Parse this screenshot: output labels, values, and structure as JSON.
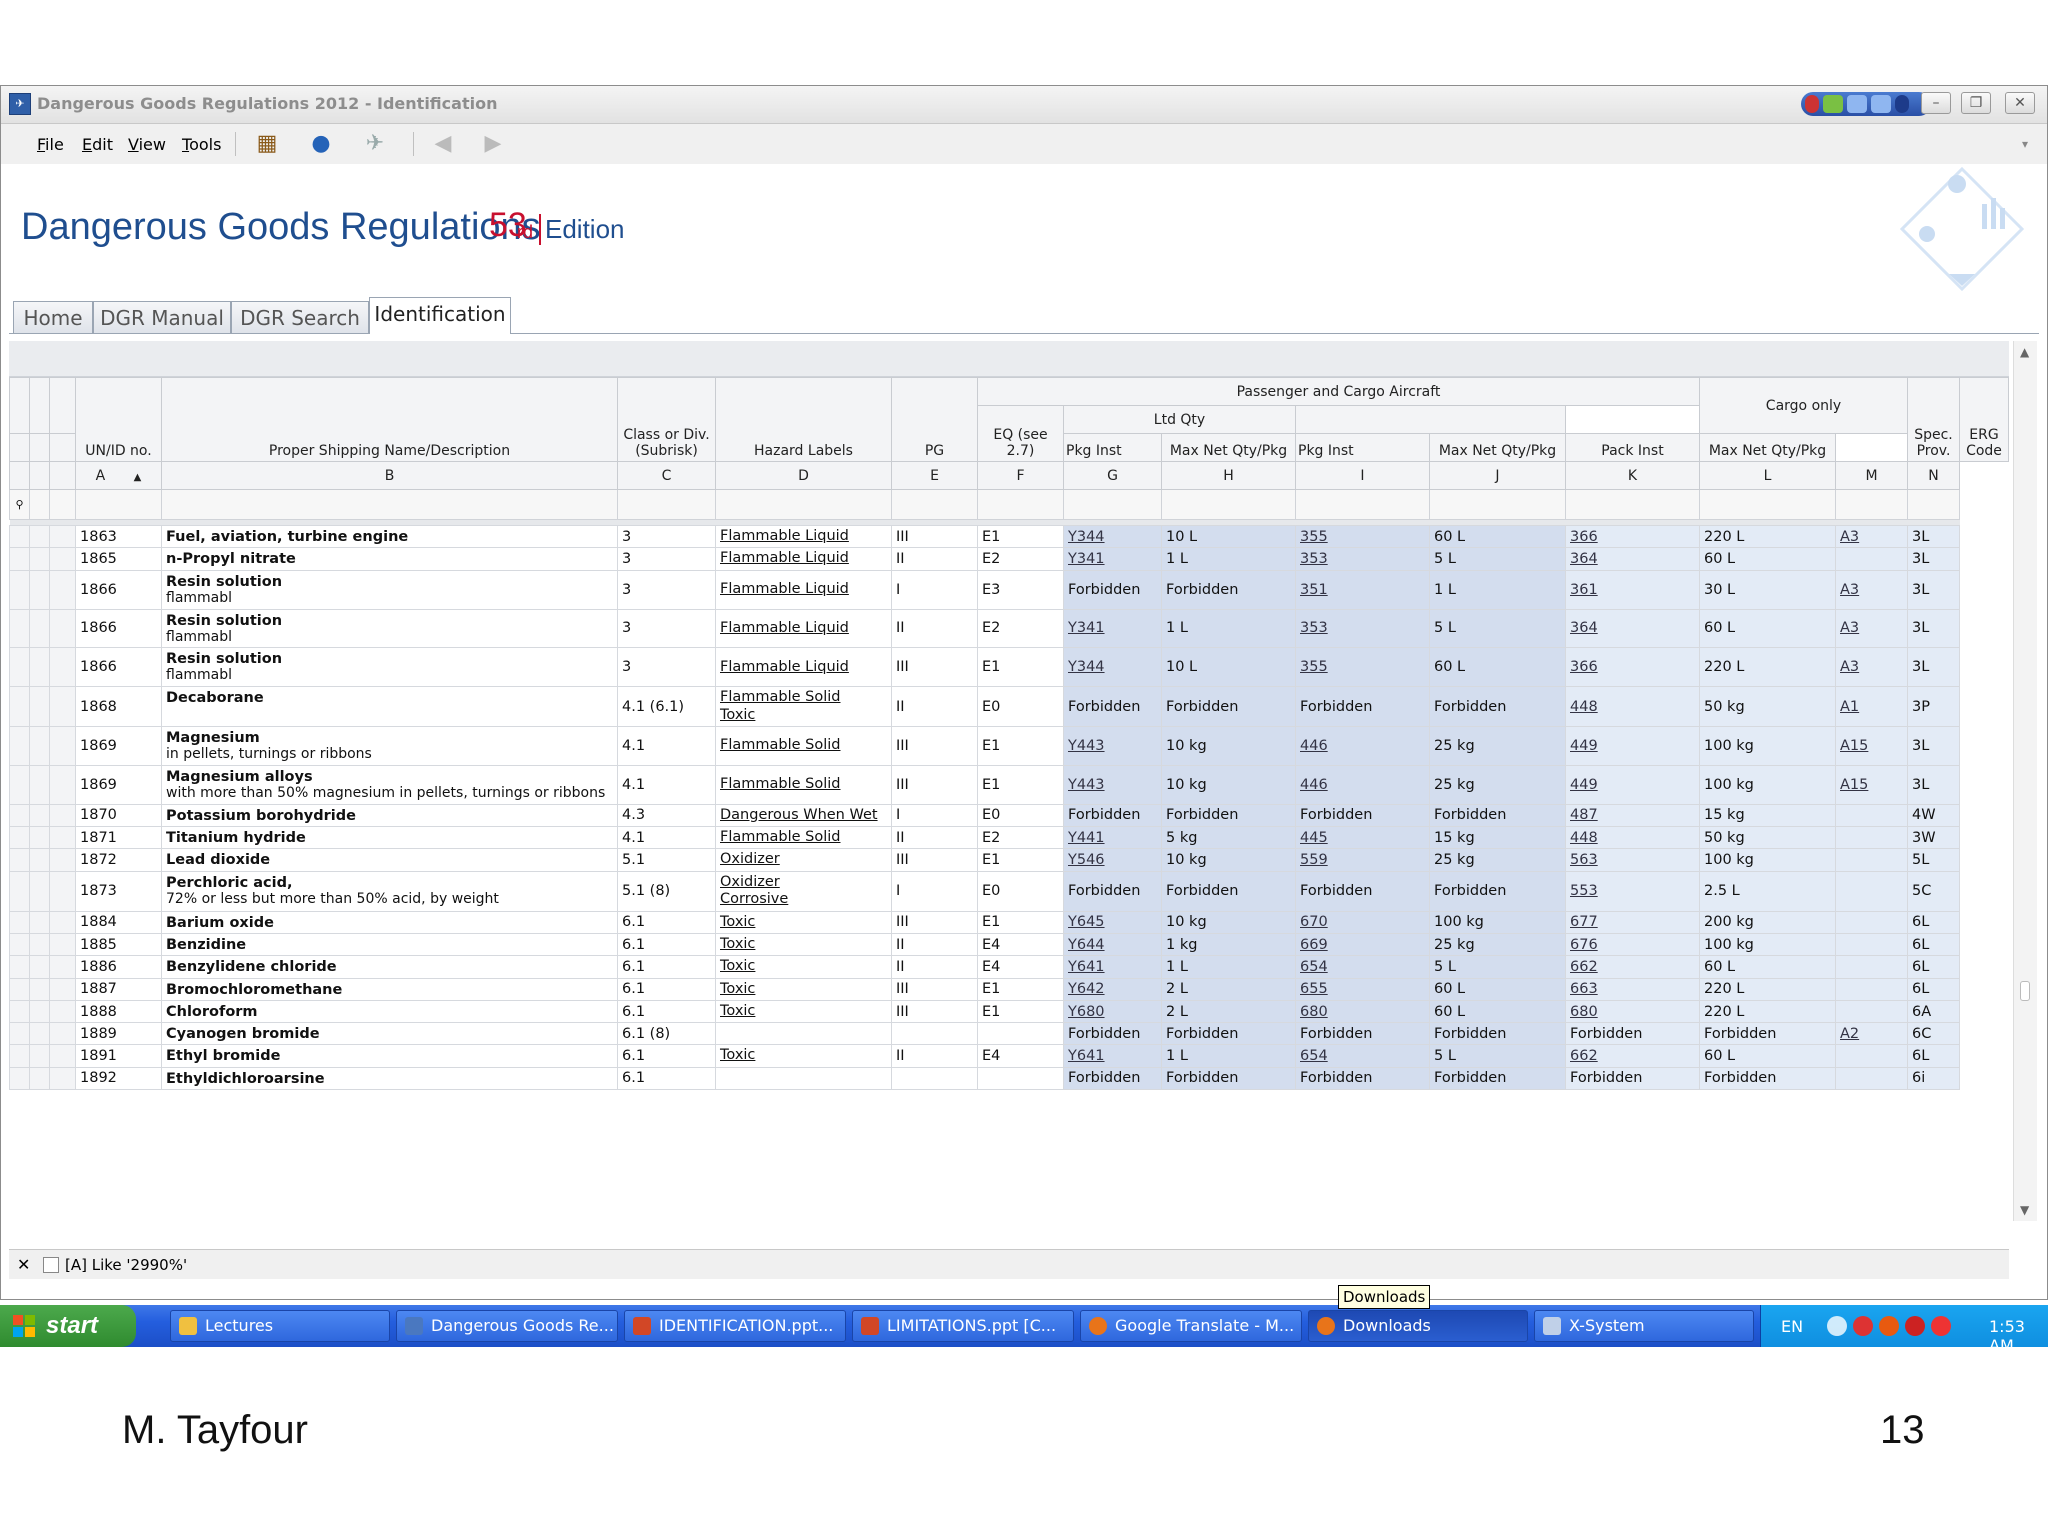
{
  "window": {
    "title": "Dangerous Goods Regulations 2012 - Identification"
  },
  "menu": [
    "File",
    "Edit",
    "View",
    "Tools"
  ],
  "banner": {
    "title": "Dangerous Goods Regulations",
    "edition_number": "53",
    "edition_suffix": "rd",
    "edition_word": "Edition"
  },
  "tabs": [
    "Home",
    "DGR Manual",
    "DGR Search",
    "Identification"
  ],
  "table": {
    "group_headers": {
      "pax": "Passenger and Cargo Aircraft",
      "ltd": "Ltd Qty",
      "cargo": "Cargo only"
    },
    "columns": [
      {
        "label": "UN/ID no.",
        "letter": "A"
      },
      {
        "label": "Proper Shipping Name/Description",
        "letter": "B"
      },
      {
        "label": "Class or Div. (Subrisk)",
        "letter": "C"
      },
      {
        "label": "Hazard Labels",
        "letter": "D"
      },
      {
        "label": "PG",
        "letter": "E"
      },
      {
        "label": "EQ (see 2.7)",
        "letter": "F"
      },
      {
        "label": "Pkg Inst",
        "letter": "G"
      },
      {
        "label": "Max Net Qty/Pkg",
        "letter": "H"
      },
      {
        "label": "Pkg Inst",
        "letter": "I"
      },
      {
        "label": "Max Net Qty/Pkg",
        "letter": "J"
      },
      {
        "label": "Pack Inst",
        "letter": "K"
      },
      {
        "label": "Max Net Qty/Pkg",
        "letter": "L"
      },
      {
        "label": "Spec. Prov.",
        "letter": "M"
      },
      {
        "label": "ERG Code",
        "letter": "N"
      }
    ],
    "rows": [
      {
        "un": "1863",
        "name": "Fuel, aviation, turbine engine",
        "desc": "",
        "cls": "3",
        "labels": [
          "Flammable Liquid"
        ],
        "pg": "III",
        "eq": "E1",
        "g": "Y344",
        "h": "10 L",
        "i": "355",
        "j": "60 L",
        "k": "366",
        "l": "220 L",
        "m": "A3",
        "n": "3L"
      },
      {
        "un": "1865",
        "name": "n-Propyl nitrate",
        "desc": "",
        "cls": "3",
        "labels": [
          "Flammable Liquid"
        ],
        "pg": "II",
        "eq": "E2",
        "g": "Y341",
        "h": "1 L",
        "i": "353",
        "j": "5 L",
        "k": "364",
        "l": "60 L",
        "m": "",
        "n": "3L"
      },
      {
        "un": "1866",
        "name": "Resin solution",
        "desc": "flammabl",
        "cls": "3",
        "labels": [
          "Flammable Liquid"
        ],
        "pg": "I",
        "eq": "E3",
        "g": "Forbidden",
        "h": "Forbidden",
        "i": "351",
        "j": "1 L",
        "k": "361",
        "l": "30 L",
        "m": "A3",
        "n": "3L"
      },
      {
        "un": "1866",
        "name": "Resin solution",
        "desc": "flammabl",
        "cls": "3",
        "labels": [
          "Flammable Liquid"
        ],
        "pg": "II",
        "eq": "E2",
        "g": "Y341",
        "h": "1 L",
        "i": "353",
        "j": "5 L",
        "k": "364",
        "l": "60 L",
        "m": "A3",
        "n": "3L"
      },
      {
        "un": "1866",
        "name": "Resin solution",
        "desc": "flammabl",
        "cls": "3",
        "labels": [
          "Flammable Liquid"
        ],
        "pg": "III",
        "eq": "E1",
        "g": "Y344",
        "h": "10 L",
        "i": "355",
        "j": "60 L",
        "k": "366",
        "l": "220 L",
        "m": "A3",
        "n": "3L"
      },
      {
        "un": "1868",
        "name": "Decaborane",
        "desc": "",
        "cls": "4.1 (6.1)",
        "labels": [
          "Flammable Solid",
          "Toxic"
        ],
        "pg": "II",
        "eq": "E0",
        "g": "Forbidden",
        "h": "Forbidden",
        "i": "Forbidden",
        "j": "Forbidden",
        "k": "448",
        "l": "50 kg",
        "m": "A1",
        "n": "3P"
      },
      {
        "un": "1869",
        "name": "Magnesium",
        "desc": "in pellets, turnings or ribbons",
        "cls": "4.1",
        "labels": [
          "Flammable Solid"
        ],
        "pg": "III",
        "eq": "E1",
        "g": "Y443",
        "h": "10 kg",
        "i": "446",
        "j": "25 kg",
        "k": "449",
        "l": "100 kg",
        "m": "A15",
        "n": "3L"
      },
      {
        "un": "1869",
        "name": "Magnesium alloys",
        "desc": "with more than 50% magnesium in pellets, turnings or ribbons",
        "cls": "4.1",
        "labels": [
          "Flammable Solid"
        ],
        "pg": "III",
        "eq": "E1",
        "g": "Y443",
        "h": "10 kg",
        "i": "446",
        "j": "25 kg",
        "k": "449",
        "l": "100 kg",
        "m": "A15",
        "n": "3L"
      },
      {
        "un": "1870",
        "name": "Potassium borohydride",
        "desc": "",
        "cls": "4.3",
        "labels": [
          "Dangerous When Wet"
        ],
        "pg": "I",
        "eq": "E0",
        "g": "Forbidden",
        "h": "Forbidden",
        "i": "Forbidden",
        "j": "Forbidden",
        "k": "487",
        "l": "15 kg",
        "m": "",
        "n": "4W"
      },
      {
        "un": "1871",
        "name": "Titanium hydride",
        "desc": "",
        "cls": "4.1",
        "labels": [
          "Flammable Solid"
        ],
        "pg": "II",
        "eq": "E2",
        "g": "Y441",
        "h": "5 kg",
        "i": "445",
        "j": "15 kg",
        "k": "448",
        "l": "50 kg",
        "m": "",
        "n": "3W"
      },
      {
        "un": "1872",
        "name": "Lead dioxide",
        "desc": "",
        "cls": "5.1",
        "labels": [
          "Oxidizer"
        ],
        "pg": "III",
        "eq": "E1",
        "g": "Y546",
        "h": "10 kg",
        "i": "559",
        "j": "25 kg",
        "k": "563",
        "l": "100 kg",
        "m": "",
        "n": "5L"
      },
      {
        "un": "1873",
        "name": "Perchloric acid,",
        "desc": "72% or less but more than 50% acid, by weight",
        "cls": "5.1 (8)",
        "labels": [
          "Oxidizer",
          "Corrosive"
        ],
        "pg": "I",
        "eq": "E0",
        "g": "Forbidden",
        "h": "Forbidden",
        "i": "Forbidden",
        "j": "Forbidden",
        "k": "553",
        "l": "2.5 L",
        "m": "",
        "n": "5C"
      },
      {
        "un": "1884",
        "name": "Barium oxide",
        "desc": "",
        "cls": "6.1",
        "labels": [
          "Toxic"
        ],
        "pg": "III",
        "eq": "E1",
        "g": "Y645",
        "h": "10 kg",
        "i": "670",
        "j": "100 kg",
        "k": "677",
        "l": "200 kg",
        "m": "",
        "n": "6L"
      },
      {
        "un": "1885",
        "name": "Benzidine",
        "desc": "",
        "cls": "6.1",
        "labels": [
          "Toxic"
        ],
        "pg": "II",
        "eq": "E4",
        "g": "Y644",
        "h": "1 kg",
        "i": "669",
        "j": "25 kg",
        "k": "676",
        "l": "100 kg",
        "m": "",
        "n": "6L"
      },
      {
        "un": "1886",
        "name": "Benzylidene chloride",
        "desc": "",
        "cls": "6.1",
        "labels": [
          "Toxic"
        ],
        "pg": "II",
        "eq": "E4",
        "g": "Y641",
        "h": "1 L",
        "i": "654",
        "j": "5 L",
        "k": "662",
        "l": "60 L",
        "m": "",
        "n": "6L"
      },
      {
        "un": "1887",
        "name": "Bromochloromethane",
        "desc": "",
        "cls": "6.1",
        "labels": [
          "Toxic"
        ],
        "pg": "III",
        "eq": "E1",
        "g": "Y642",
        "h": "2 L",
        "i": "655",
        "j": "60 L",
        "k": "663",
        "l": "220 L",
        "m": "",
        "n": "6L"
      },
      {
        "un": "1888",
        "name": "Chloroform",
        "desc": "",
        "cls": "6.1",
        "labels": [
          "Toxic"
        ],
        "pg": "III",
        "eq": "E1",
        "g": "Y680",
        "h": "2 L",
        "i": "680",
        "j": "60 L",
        "k": "680",
        "l": "220 L",
        "m": "",
        "n": "6A"
      },
      {
        "un": "1889",
        "name": "Cyanogen bromide",
        "desc": "",
        "cls": "6.1 (8)",
        "labels": [],
        "pg": "",
        "eq": "",
        "g": "Forbidden",
        "h": "Forbidden",
        "i": "Forbidden",
        "j": "Forbidden",
        "k": "Forbidden",
        "l": "Forbidden",
        "m": "A2",
        "n": "6C"
      },
      {
        "un": "1891",
        "name": "Ethyl bromide",
        "desc": "",
        "cls": "6.1",
        "labels": [
          "Toxic"
        ],
        "pg": "II",
        "eq": "E4",
        "g": "Y641",
        "h": "1 L",
        "i": "654",
        "j": "5 L",
        "k": "662",
        "l": "60 L",
        "m": "",
        "n": "6L"
      },
      {
        "un": "1892",
        "name": "Ethyldichloroarsine",
        "desc": "",
        "cls": "6.1",
        "labels": [],
        "pg": "",
        "eq": "",
        "g": "Forbidden",
        "h": "Forbidden",
        "i": "Forbidden",
        "j": "Forbidden",
        "k": "Forbidden",
        "l": "Forbidden",
        "m": "",
        "n": "6i"
      }
    ]
  },
  "filter": {
    "text": "[A] Like '2990%'"
  },
  "tooltip": "Downloads",
  "taskbar": {
    "start": "start",
    "tasks": [
      "Lectures",
      "Dangerous Goods Re...",
      "IDENTIFICATION.ppt...",
      "LIMITATIONS.ppt [C...",
      "Google Translate - M...",
      "Downloads",
      "X-System"
    ],
    "lang": "EN",
    "clock": "1:53 AM"
  },
  "footer": {
    "author": "M. Tayfour",
    "page": "13"
  }
}
